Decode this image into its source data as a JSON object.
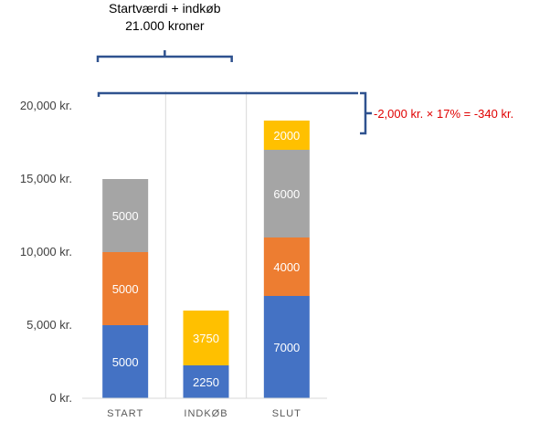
{
  "chart_data": {
    "type": "bar",
    "stacked": true,
    "categories": [
      "START",
      "INDKØB",
      "SLUT"
    ],
    "series": [
      {
        "color": "#4472c4",
        "values": [
          5000,
          2250,
          7000
        ]
      },
      {
        "color": "#ed7d31",
        "values": [
          5000,
          0,
          4000
        ]
      },
      {
        "color": "#a5a5a5",
        "values": [
          5000,
          0,
          6000
        ]
      },
      {
        "color": "#ffc000",
        "values": [
          0,
          3750,
          2000
        ]
      }
    ],
    "yticks": [
      "0 kr.",
      "5,000 kr.",
      "10,000 kr.",
      "15,000 kr.",
      "20,000 kr."
    ],
    "ytick_values": [
      0,
      5000,
      10000,
      15000,
      20000
    ],
    "ylim": [
      0,
      20000
    ],
    "grid": "vertical category separators",
    "annotations": {
      "top_line1": "Startværdi + indkøb",
      "top_line2": "21.000 kroner",
      "right_text": "-2,000 kr. × 17% = -340 kr.",
      "top_brace_spans": [
        "START",
        "INDKØB"
      ],
      "level_line_value": 21000,
      "right_brace_range": [
        19000,
        21000
      ]
    },
    "colors": {
      "annotation_bracket": "#2f528f",
      "annotation_red": "#e00000"
    }
  }
}
